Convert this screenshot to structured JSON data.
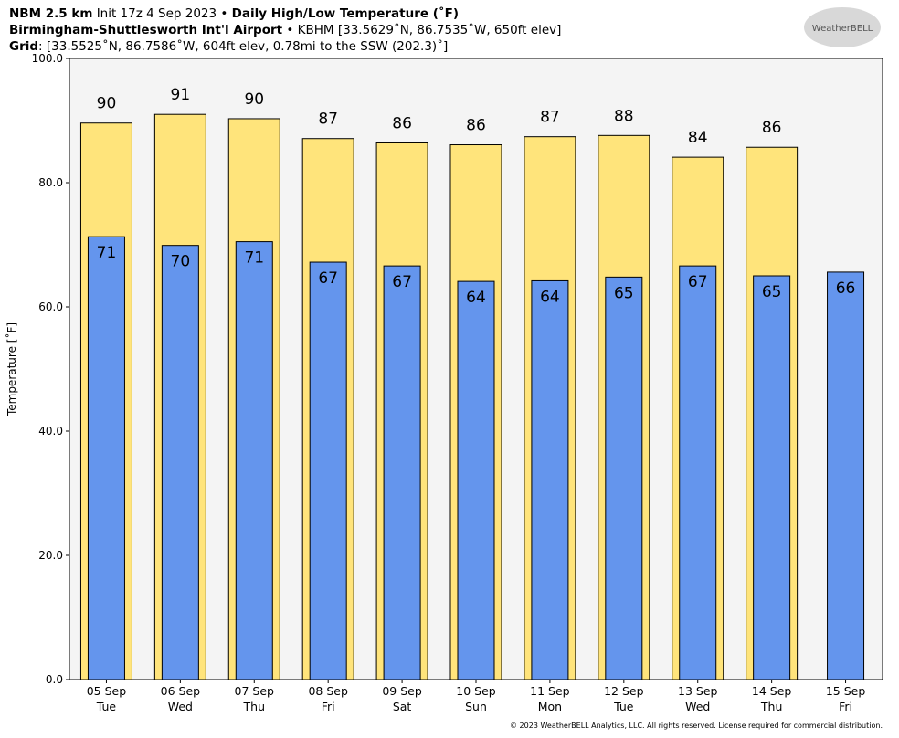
{
  "chart_data": {
    "type": "bar",
    "title_parts": [
      "NBM 2.5 km",
      "Init 17z 4 Sep 2023",
      "•",
      "Daily High/Low Temperature (˚F)"
    ],
    "subtitle_parts": [
      "Birmingham-Shuttlesworth Int'l Airport",
      "• KBHM [33.5629˚N, 86.7535˚W, 650ft elev]"
    ],
    "grid_parts": [
      "Grid",
      ": [33.5525˚N, 86.7586˚W, 604ft elev, 0.78mi to the SSW (202.3)˚]"
    ],
    "ylabel": "Temperature [˚F]",
    "logo": "WeatherBELL",
    "footer": "© 2023 WeatherBELL Analytics, LLC. All rights reserved. License required for commercial distribution.",
    "categories": [
      "05 Sep",
      "06 Sep",
      "07 Sep",
      "08 Sep",
      "09 Sep",
      "10 Sep",
      "11 Sep",
      "12 Sep",
      "13 Sep",
      "14 Sep",
      "15 Sep"
    ],
    "category_days": [
      "Tue",
      "Wed",
      "Thu",
      "Fri",
      "Sat",
      "Sun",
      "Mon",
      "Tue",
      "Wed",
      "Thu",
      "Fri"
    ],
    "series": [
      {
        "name": "High",
        "color": "#ffe47b",
        "values": [
          89.6,
          91.0,
          90.3,
          87.1,
          86.4,
          86.1,
          87.4,
          87.6,
          84.1,
          85.7,
          null
        ],
        "value_labels": [
          "90",
          "91",
          "90",
          "87",
          "86",
          "86",
          "87",
          "88",
          "84",
          "86",
          null
        ]
      },
      {
        "name": "Low",
        "color": "#6495ed",
        "values": [
          71.3,
          69.9,
          70.5,
          67.2,
          66.6,
          64.1,
          64.2,
          64.8,
          66.6,
          65.0,
          65.6
        ],
        "value_labels": [
          "71",
          "70",
          "71",
          "67",
          "67",
          "64",
          "64",
          "65",
          "67",
          "65",
          "66"
        ]
      }
    ],
    "ylim": [
      0,
      100
    ],
    "yticks": [
      {
        "value": 0,
        "label": "0.0"
      },
      {
        "value": 20,
        "label": "20.0"
      },
      {
        "value": 40,
        "label": "40.0"
      },
      {
        "value": 60,
        "label": "60.0"
      },
      {
        "value": 80,
        "label": "80.0"
      },
      {
        "value": 100,
        "label": "100.0"
      }
    ]
  }
}
